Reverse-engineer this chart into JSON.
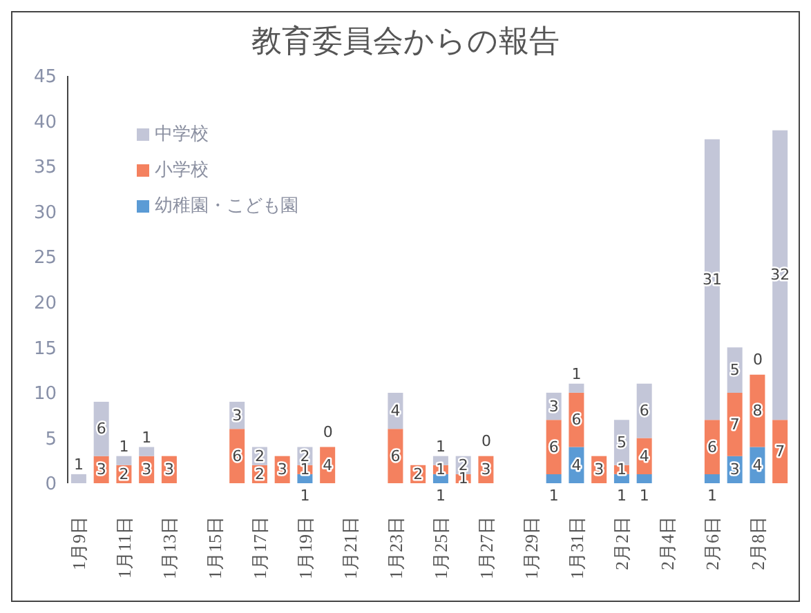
{
  "chart_data": {
    "type": "bar",
    "stacked": true,
    "title": "教育委員会からの報告",
    "categories": [
      "1月9日",
      null,
      "1月11日",
      null,
      "1月13日",
      null,
      "1月15日",
      null,
      "1月17日",
      null,
      "1月19日",
      null,
      "1月21日",
      null,
      "1月23日",
      null,
      "1月25日",
      null,
      "1月27日",
      null,
      "1月29日",
      null,
      "1月31日",
      null,
      "2月2日",
      null,
      "2月4日",
      null,
      "2月6日",
      null,
      "2月8日",
      null
    ],
    "series": [
      {
        "name": "幼稚園・こども園",
        "color": "#5b9bd5",
        "values": [
          null,
          null,
          null,
          null,
          null,
          null,
          null,
          null,
          null,
          null,
          1,
          null,
          null,
          null,
          null,
          null,
          1,
          null,
          null,
          null,
          null,
          1,
          4,
          null,
          1,
          1,
          null,
          null,
          1,
          3,
          4,
          null
        ]
      },
      {
        "name": "小学校",
        "color": "#f4815f",
        "values": [
          null,
          3,
          2,
          3,
          3,
          null,
          null,
          6,
          2,
          3,
          1,
          4,
          null,
          null,
          6,
          2,
          1,
          1,
          3,
          null,
          null,
          6,
          6,
          3,
          1,
          4,
          null,
          null,
          6,
          7,
          8,
          7
        ]
      },
      {
        "name": "中学校",
        "color": "#c3c6d8",
        "values": [
          1,
          6,
          1,
          1,
          null,
          null,
          null,
          3,
          2,
          null,
          2,
          0,
          null,
          null,
          4,
          null,
          1,
          2,
          0,
          null,
          null,
          3,
          1,
          null,
          5,
          6,
          null,
          null,
          31,
          5,
          0,
          32
        ]
      }
    ],
    "ylim": [
      0,
      45
    ],
    "yticks": [
      0,
      5,
      10,
      15,
      20,
      25,
      30,
      35,
      40,
      45
    ],
    "grid": false,
    "legend": "top left",
    "data_labels": true
  }
}
